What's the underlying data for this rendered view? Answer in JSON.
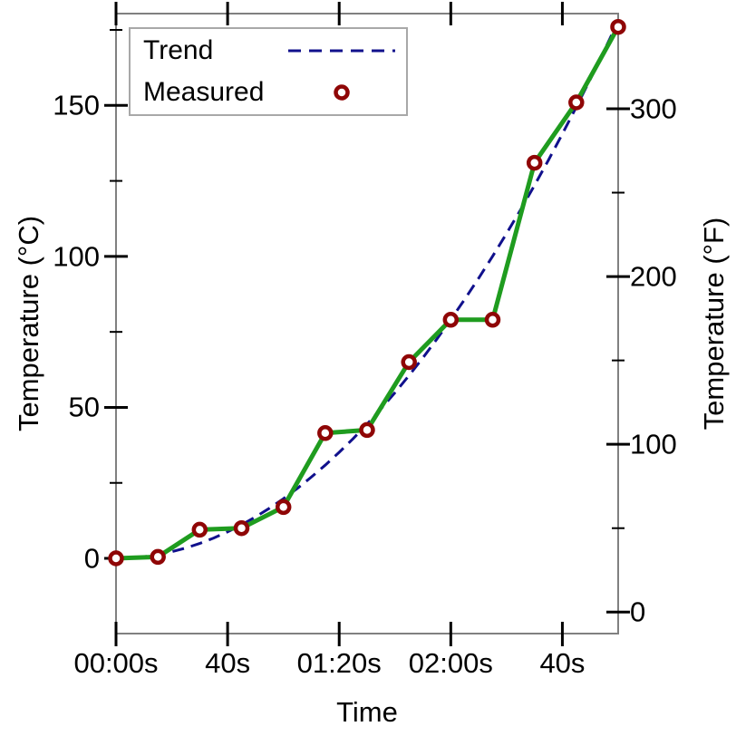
{
  "chart_data": {
    "type": "line",
    "title": "",
    "xlabel": "Time",
    "ylabel_left": "Temperature (°C)",
    "ylabel_right": "Temperature (°F)",
    "xlim": [
      0,
      180
    ],
    "ylim_celsius": [
      -24.9,
      180.4
    ],
    "grid": false,
    "legend_position": "top-left",
    "x_ticks": {
      "values": [
        0,
        40,
        80,
        120,
        160
      ],
      "labels": [
        "00:00s",
        "40s",
        "01:20s",
        "02:00s",
        "40s"
      ]
    },
    "y_ticks_celsius": {
      "values": [
        0,
        50,
        100,
        150
      ],
      "labels": [
        "0",
        "50",
        "100",
        "150"
      ],
      "minor": [
        25,
        75,
        125,
        175
      ]
    },
    "y_ticks_fahrenheit": {
      "values": [
        0,
        100,
        200,
        300
      ],
      "labels": [
        "0",
        "100",
        "200",
        "300"
      ],
      "minor": [
        50,
        150,
        250,
        350
      ]
    },
    "series": [
      {
        "name": "Trend",
        "style": "dashed-line",
        "color": "#10108c",
        "x": [
          0,
          5,
          10,
          15,
          20,
          25,
          30,
          35,
          40,
          45,
          50,
          55,
          60,
          65,
          70,
          75,
          80,
          85,
          90,
          95,
          100,
          105,
          110,
          115,
          120,
          125,
          130,
          135,
          140,
          145,
          150,
          155,
          160,
          165,
          170,
          175,
          180
        ],
        "y": [
          0,
          0.14,
          0.55,
          1.24,
          2.2,
          3.43,
          4.94,
          6.73,
          8.78,
          11.12,
          13.73,
          16.61,
          19.76,
          23.19,
          26.9,
          30.88,
          35.14,
          39.67,
          44.47,
          49.55,
          54.9,
          60.53,
          66.43,
          72.6,
          79.06,
          85.78,
          92.78,
          100.06,
          107.6,
          115.43,
          123.53,
          131.9,
          140.54,
          149.46,
          158.66,
          168.12,
          177.87
        ]
      },
      {
        "name": "Measured",
        "style": "solid-line-open-circles",
        "line_color": "#1f9c1f",
        "marker_color": "#8f0606",
        "x": [
          0,
          15,
          30,
          45,
          60,
          75,
          90,
          105,
          120,
          135,
          150,
          165,
          180
        ],
        "y": [
          0,
          0.5,
          9.5,
          10,
          17,
          41.5,
          42.5,
          65,
          79,
          79,
          131,
          151,
          176
        ]
      }
    ],
    "colors": {
      "spine": "#808080",
      "tick": "#000000",
      "legend_border": "#a8a8a8",
      "background": "#ffffff"
    }
  }
}
